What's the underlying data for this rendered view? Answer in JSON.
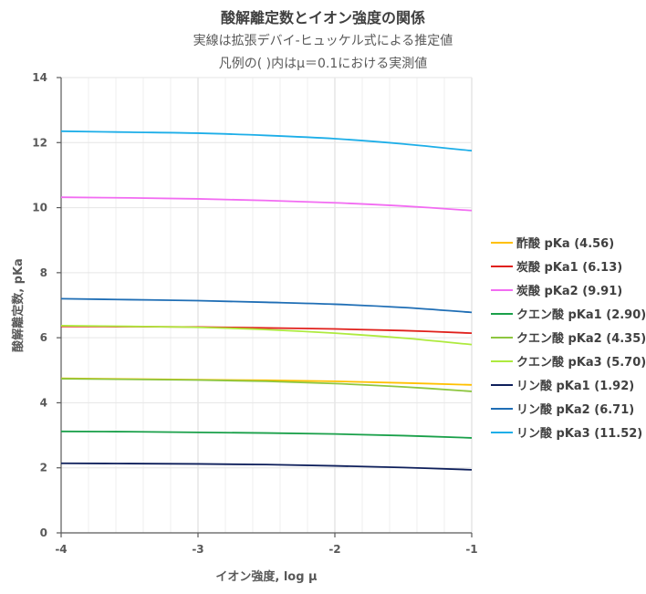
{
  "chart_data": {
    "type": "line",
    "title": "酸解離定数とイオン強度の関係",
    "subtitle": [
      "実線は拡張デバイ-ヒュッケル式による推定値",
      "凡例の( )内はμ＝0.1における実測値"
    ],
    "xlabel": "イオン強度, log μ",
    "ylabel": "酸解離定数, pKa",
    "xlim": [
      -4,
      -1
    ],
    "ylim": [
      0,
      14
    ],
    "xticks": [
      -4,
      -3,
      -2,
      -1
    ],
    "yticks": [
      0,
      2,
      4,
      6,
      8,
      10,
      12,
      14
    ],
    "grid": true,
    "legend_position": "right",
    "x": [
      -4,
      -3.5,
      -3,
      -2.5,
      -2,
      -1.5,
      -1
    ],
    "series": [
      {
        "name": "酢酸 pKa (4.56)",
        "color": "#FFC000",
        "values": [
          4.75,
          4.73,
          4.71,
          4.69,
          4.66,
          4.61,
          4.55
        ]
      },
      {
        "name": "炭酸 pKa1 (6.13)",
        "color": "#E0201B",
        "values": [
          6.35,
          6.34,
          6.33,
          6.3,
          6.27,
          6.22,
          6.14
        ]
      },
      {
        "name": "炭酸 pKa2 (9.91)",
        "color": "#F26CF2",
        "values": [
          10.32,
          10.3,
          10.27,
          10.22,
          10.15,
          10.05,
          9.91
        ]
      },
      {
        "name": "クエン酸 pKa1 (2.90)",
        "color": "#1AA04A",
        "values": [
          3.12,
          3.11,
          3.09,
          3.07,
          3.04,
          2.99,
          2.92
        ]
      },
      {
        "name": "クエン酸 pKa2 (4.35)",
        "color": "#8DC63F",
        "values": [
          4.74,
          4.72,
          4.7,
          4.66,
          4.59,
          4.49,
          4.35
        ]
      },
      {
        "name": "クエン酸 pKa3 (5.70)",
        "color": "#AEEA3E",
        "values": [
          6.37,
          6.35,
          6.32,
          6.25,
          6.14,
          5.99,
          5.79
        ]
      },
      {
        "name": "リン酸 pKa1 (1.92)",
        "color": "#0E1F5B",
        "values": [
          2.14,
          2.13,
          2.12,
          2.1,
          2.06,
          2.01,
          1.94
        ]
      },
      {
        "name": "リン酸 pKa2 (6.71)",
        "color": "#1F6EB5",
        "values": [
          7.2,
          7.17,
          7.14,
          7.09,
          7.03,
          6.93,
          6.78
        ]
      },
      {
        "name": "リン酸 pKa3 (11.52)",
        "color": "#1DAEE8",
        "values": [
          12.35,
          12.32,
          12.29,
          12.22,
          12.12,
          11.96,
          11.75
        ]
      }
    ]
  }
}
